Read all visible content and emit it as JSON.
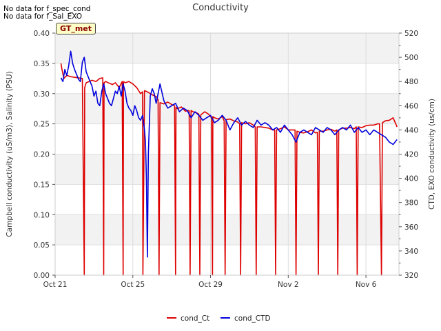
{
  "notes": [
    "No data for f_spec_cond",
    "No data for f_Sal_EXO"
  ],
  "site_badge": "GT_met",
  "chart_data": {
    "type": "line",
    "title": "Conductivity",
    "xlabel": "",
    "ylabel_left": "Campbell conductivity (uS/m3), Salinity (PSU)",
    "ylabel_right": "CTD, EXO conductivity (us/cm)",
    "x_ticks": [
      "Oct 21",
      "Oct 25",
      "Oct 29",
      "Nov 2",
      "Nov 6"
    ],
    "x_tick_days": [
      0,
      4,
      8,
      12,
      16
    ],
    "xlim_days": [
      0,
      17.7
    ],
    "ylim_left": [
      0,
      0.4
    ],
    "ylim_right": [
      320,
      520
    ],
    "y_ticks_left": [
      "0.00",
      "0.05",
      "0.10",
      "0.15",
      "0.20",
      "0.25",
      "0.30",
      "0.35",
      "0.40"
    ],
    "y_ticks_right": [
      "320",
      "340",
      "360",
      "380",
      "400",
      "420",
      "440",
      "460",
      "480",
      "500",
      "520"
    ],
    "grid": true,
    "legend_position": "bottom-center",
    "series": [
      {
        "name": "cond_Ct",
        "color": "#dd0000",
        "axis": "left",
        "x": [
          0.3,
          0.35,
          0.45,
          0.6,
          0.8,
          1.0,
          1.2,
          1.4,
          1.5,
          1.52,
          1.6,
          1.75,
          1.9,
          2.1,
          2.3,
          2.45,
          2.5,
          2.52,
          2.6,
          2.8,
          2.95,
          3.1,
          3.3,
          3.45,
          3.5,
          3.52,
          3.6,
          3.8,
          4.0,
          4.2,
          4.4,
          4.5,
          4.52,
          4.6,
          4.8,
          5.0,
          5.2,
          5.3,
          5.35,
          5.4,
          5.6,
          5.8,
          6.0,
          6.15,
          6.2,
          6.22,
          6.3,
          6.5,
          6.7,
          6.9,
          6.95,
          7.0,
          7.1,
          7.3,
          7.4,
          7.45,
          7.5,
          7.7,
          7.9,
          8.05,
          8.1,
          8.12,
          8.2,
          8.4,
          8.6,
          8.7,
          8.75,
          8.8,
          9.0,
          9.2,
          9.4,
          9.5,
          9.55,
          9.6,
          9.8,
          10.0,
          10.2,
          10.3,
          10.35,
          10.4,
          10.6,
          10.8,
          11.0,
          11.2,
          11.3,
          11.35,
          11.4,
          11.6,
          11.8,
          12.0,
          12.2,
          12.35,
          12.4,
          12.45,
          12.6,
          12.8,
          13.0,
          13.2,
          13.4,
          13.5,
          13.55,
          13.6,
          13.8,
          14.0,
          14.2,
          14.4,
          14.5,
          14.55,
          14.6,
          14.8,
          15.0,
          15.2,
          15.4,
          15.5,
          15.55,
          15.6,
          15.8,
          16.0,
          16.2,
          16.4,
          16.6,
          16.7,
          16.8,
          16.85,
          17.0,
          17.2,
          17.4,
          17.6
        ],
        "y": [
          0.35,
          0.34,
          0.325,
          0.33,
          0.328,
          0.327,
          0.326,
          0.325,
          0.0,
          0.31,
          0.318,
          0.32,
          0.322,
          0.32,
          0.325,
          0.326,
          0.0,
          0.318,
          0.32,
          0.317,
          0.315,
          0.318,
          0.31,
          0.32,
          0.0,
          0.32,
          0.318,
          0.32,
          0.316,
          0.31,
          0.3,
          0.303,
          0.0,
          0.305,
          0.302,
          0.298,
          0.295,
          0.29,
          0.0,
          0.285,
          0.283,
          0.286,
          0.282,
          0.28,
          0.0,
          0.277,
          0.275,
          0.278,
          0.271,
          0.272,
          0.0,
          0.272,
          0.27,
          0.268,
          0.266,
          0.0,
          0.265,
          0.27,
          0.266,
          0.26,
          0.0,
          0.262,
          0.26,
          0.258,
          0.262,
          0.255,
          0.0,
          0.257,
          0.258,
          0.255,
          0.253,
          0.25,
          0.0,
          0.252,
          0.25,
          0.252,
          0.248,
          0.245,
          0.0,
          0.245,
          0.245,
          0.244,
          0.243,
          0.24,
          0.24,
          0.0,
          0.24,
          0.242,
          0.245,
          0.24,
          0.24,
          0.24,
          0.0,
          0.238,
          0.236,
          0.235,
          0.237,
          0.24,
          0.235,
          0.236,
          0.0,
          0.238,
          0.238,
          0.24,
          0.241,
          0.238,
          0.24,
          0.0,
          0.24,
          0.243,
          0.243,
          0.244,
          0.242,
          0.245,
          0.0,
          0.245,
          0.244,
          0.247,
          0.248,
          0.248,
          0.25,
          0.25,
          0.0,
          0.252,
          0.255,
          0.256,
          0.26,
          0.245
        ]
      },
      {
        "name": "cond_CTD",
        "color": "#0000dd",
        "axis": "right",
        "x": [
          0.3,
          0.4,
          0.5,
          0.6,
          0.7,
          0.8,
          0.9,
          1.0,
          1.1,
          1.2,
          1.3,
          1.4,
          1.5,
          1.6,
          1.7,
          1.8,
          1.9,
          2.0,
          2.1,
          2.2,
          2.3,
          2.4,
          2.5,
          2.6,
          2.7,
          2.8,
          2.9,
          3.0,
          3.1,
          3.2,
          3.3,
          3.4,
          3.5,
          3.6,
          3.7,
          3.8,
          3.9,
          4.0,
          4.1,
          4.2,
          4.3,
          4.4,
          4.5,
          4.6,
          4.65,
          4.7,
          4.75,
          4.8,
          4.9,
          5.0,
          5.1,
          5.2,
          5.3,
          5.4,
          5.6,
          5.8,
          6.0,
          6.2,
          6.4,
          6.6,
          6.8,
          7.0,
          7.2,
          7.4,
          7.6,
          7.8,
          8.0,
          8.2,
          8.4,
          8.6,
          8.8,
          9.0,
          9.2,
          9.4,
          9.6,
          9.8,
          10.0,
          10.2,
          10.4,
          10.6,
          10.8,
          11.0,
          11.2,
          11.4,
          11.6,
          11.8,
          12.0,
          12.2,
          12.4,
          12.6,
          12.8,
          13.0,
          13.2,
          13.4,
          13.6,
          13.8,
          14.0,
          14.2,
          14.4,
          14.6,
          14.8,
          15.0,
          15.2,
          15.4,
          15.6,
          15.8,
          16.0,
          16.2,
          16.4,
          16.6,
          16.8,
          17.0,
          17.2,
          17.4,
          17.6
        ],
        "y": [
          483,
          480,
          490,
          485,
          493,
          505,
          495,
          490,
          486,
          482,
          480,
          496,
          500,
          488,
          484,
          480,
          476,
          468,
          472,
          462,
          460,
          472,
          478,
          470,
          466,
          462,
          460,
          466,
          472,
          470,
          476,
          468,
          478,
          472,
          462,
          458,
          456,
          452,
          460,
          456,
          450,
          448,
          452,
          440,
          430,
          400,
          335,
          420,
          468,
          474,
          470,
          462,
          470,
          478,
          464,
          458,
          460,
          462,
          455,
          458,
          456,
          450,
          455,
          452,
          448,
          450,
          452,
          446,
          448,
          452,
          448,
          440,
          446,
          450,
          444,
          447,
          444,
          442,
          448,
          444,
          446,
          444,
          440,
          442,
          438,
          444,
          440,
          436,
          430,
          438,
          440,
          438,
          436,
          442,
          440,
          438,
          442,
          440,
          436,
          440,
          442,
          440,
          444,
          438,
          442,
          438,
          440,
          436,
          440,
          438,
          436,
          434,
          430,
          428,
          432
        ]
      }
    ]
  },
  "legend": [
    {
      "label": "cond_Ct",
      "color": "#dd0000"
    },
    {
      "label": "cond_CTD",
      "color": "#0000dd"
    }
  ]
}
